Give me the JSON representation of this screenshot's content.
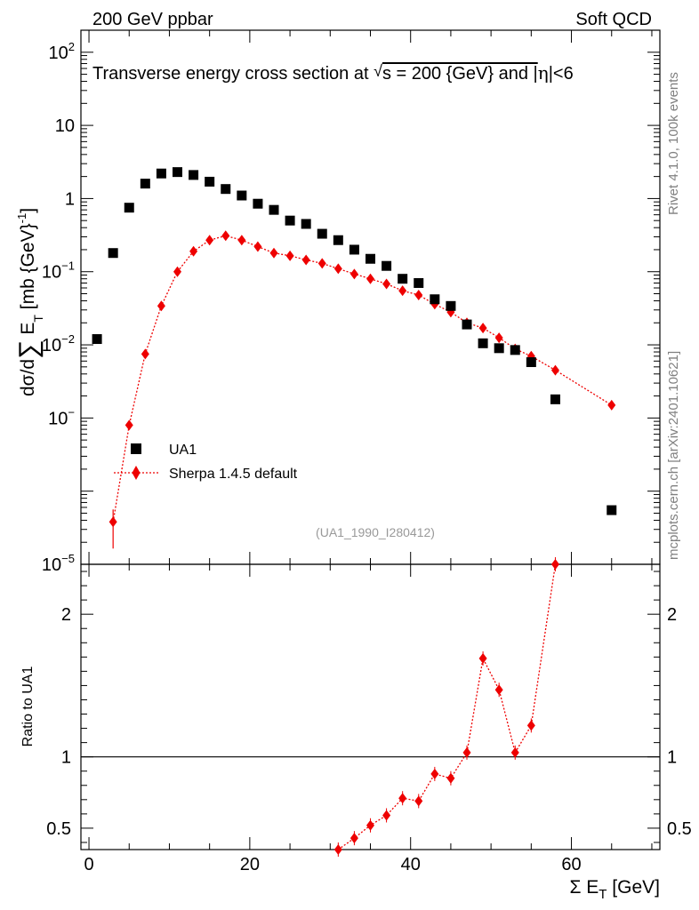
{
  "header": {
    "left": "200 GeV ppbar",
    "right": "Soft QCD"
  },
  "side_text": {
    "rivet": "Rivet 4.1.0,  100k events",
    "mcplots": "mcplots.cern.ch [arXiv:2401.10621]"
  },
  "colors": {
    "data": "#000000",
    "mc": "#ee0000",
    "reference_line": "#000000",
    "watermark": "#999999"
  },
  "chart_data": [
    {
      "type": "scatter",
      "panel": "main",
      "title": "Transverse energy cross section at √s = 200 {GeV} and |η|<6",
      "title_parts": {
        "pre": "Transverse energy cross section at ",
        "sqrt": "√",
        "s_eq": "s = 200 {GeV} and |",
        "eta": "η",
        "post": "|<6"
      },
      "ylabel": "dσ/d∑ E_T [mb {GeV}^-1]",
      "ylabel_parts": {
        "ds": "dσ/d",
        "sum": "∑",
        "e": " E",
        "t": "T",
        "unit": " [mb {GeV}",
        "exp": "-1",
        "close": "]"
      },
      "yscale": "log",
      "ylim": [
        1e-05,
        200
      ],
      "xlim": [
        -1,
        71
      ],
      "legend_position": "lower-left",
      "y_ticks": [
        {
          "value": 100,
          "base": "10",
          "exp": "2"
        },
        {
          "value": 10,
          "base": "10",
          "exp": ""
        },
        {
          "value": 1,
          "base": "1",
          "exp": ""
        },
        {
          "value": 0.1,
          "base": "10",
          "exp": "−1"
        },
        {
          "value": 0.01,
          "base": "10",
          "exp": "−2"
        },
        {
          "value": 0.001,
          "base": "10",
          "exp": "−"
        },
        {
          "value": 1e-05,
          "base": "10",
          "exp": "−5"
        }
      ],
      "watermark": "(UA1_1990_I280412)",
      "series": [
        {
          "name": "UA1",
          "marker": "square",
          "color": "#000000",
          "x": [
            1,
            3,
            5,
            7,
            9,
            11,
            13,
            15,
            17,
            19,
            21,
            23,
            25,
            27,
            29,
            31,
            33,
            35,
            37,
            39,
            41,
            43,
            45,
            47,
            49,
            51,
            53,
            55,
            58,
            65
          ],
          "y": [
            0.012,
            0.18,
            0.75,
            1.6,
            2.2,
            2.3,
            2.1,
            1.7,
            1.35,
            1.1,
            0.85,
            0.7,
            0.5,
            0.45,
            0.33,
            0.27,
            0.2,
            0.15,
            0.12,
            0.08,
            0.07,
            0.042,
            0.034,
            0.019,
            0.0105,
            0.009,
            0.0085,
            0.0058,
            0.0018,
            5.5e-05
          ]
        },
        {
          "name": "Sherpa 1.4.5 default",
          "marker": "diamond",
          "color": "#ee0000",
          "x": [
            3,
            5,
            7,
            9,
            11,
            13,
            15,
            17,
            19,
            21,
            23,
            25,
            27,
            29,
            31,
            33,
            35,
            37,
            39,
            41,
            43,
            45,
            47,
            49,
            51,
            53,
            55,
            58,
            65
          ],
          "y": [
            3.8e-05,
            0.0008,
            0.0075,
            0.034,
            0.1,
            0.19,
            0.27,
            0.31,
            0.27,
            0.22,
            0.18,
            0.165,
            0.145,
            0.13,
            0.11,
            0.093,
            0.08,
            0.068,
            0.055,
            0.048,
            0.036,
            0.028,
            0.02,
            0.017,
            0.0125,
            0.0088,
            0.007,
            0.0045,
            0.0015
          ]
        }
      ]
    },
    {
      "type": "line",
      "panel": "ratio",
      "ylabel": "Ratio to UA1",
      "xlabel_parts": {
        "sigma": "Σ",
        "e": " E",
        "t": "T",
        "unit": " [GeV]"
      },
      "xlim": [
        -1,
        71
      ],
      "ylim": [
        0.35,
        2.35
      ],
      "x_ticks": [
        "0",
        "20",
        "40",
        "60"
      ],
      "y_ticks": [
        {
          "value": 0.5,
          "label": "0.5"
        },
        {
          "value": 1,
          "label": "1"
        },
        {
          "value": 2,
          "label": "2"
        }
      ],
      "series": [
        {
          "name": "Sherpa 1.4.5 default / UA1",
          "color": "#ee0000",
          "x": [
            31,
            33,
            35,
            37,
            39,
            41,
            43,
            45,
            47,
            49,
            51,
            53,
            55,
            58
          ],
          "y": [
            0.35,
            0.43,
            0.52,
            0.59,
            0.71,
            0.69,
            0.88,
            0.85,
            1.03,
            1.69,
            1.47,
            1.03,
            1.22,
            2.35
          ]
        }
      ]
    }
  ]
}
